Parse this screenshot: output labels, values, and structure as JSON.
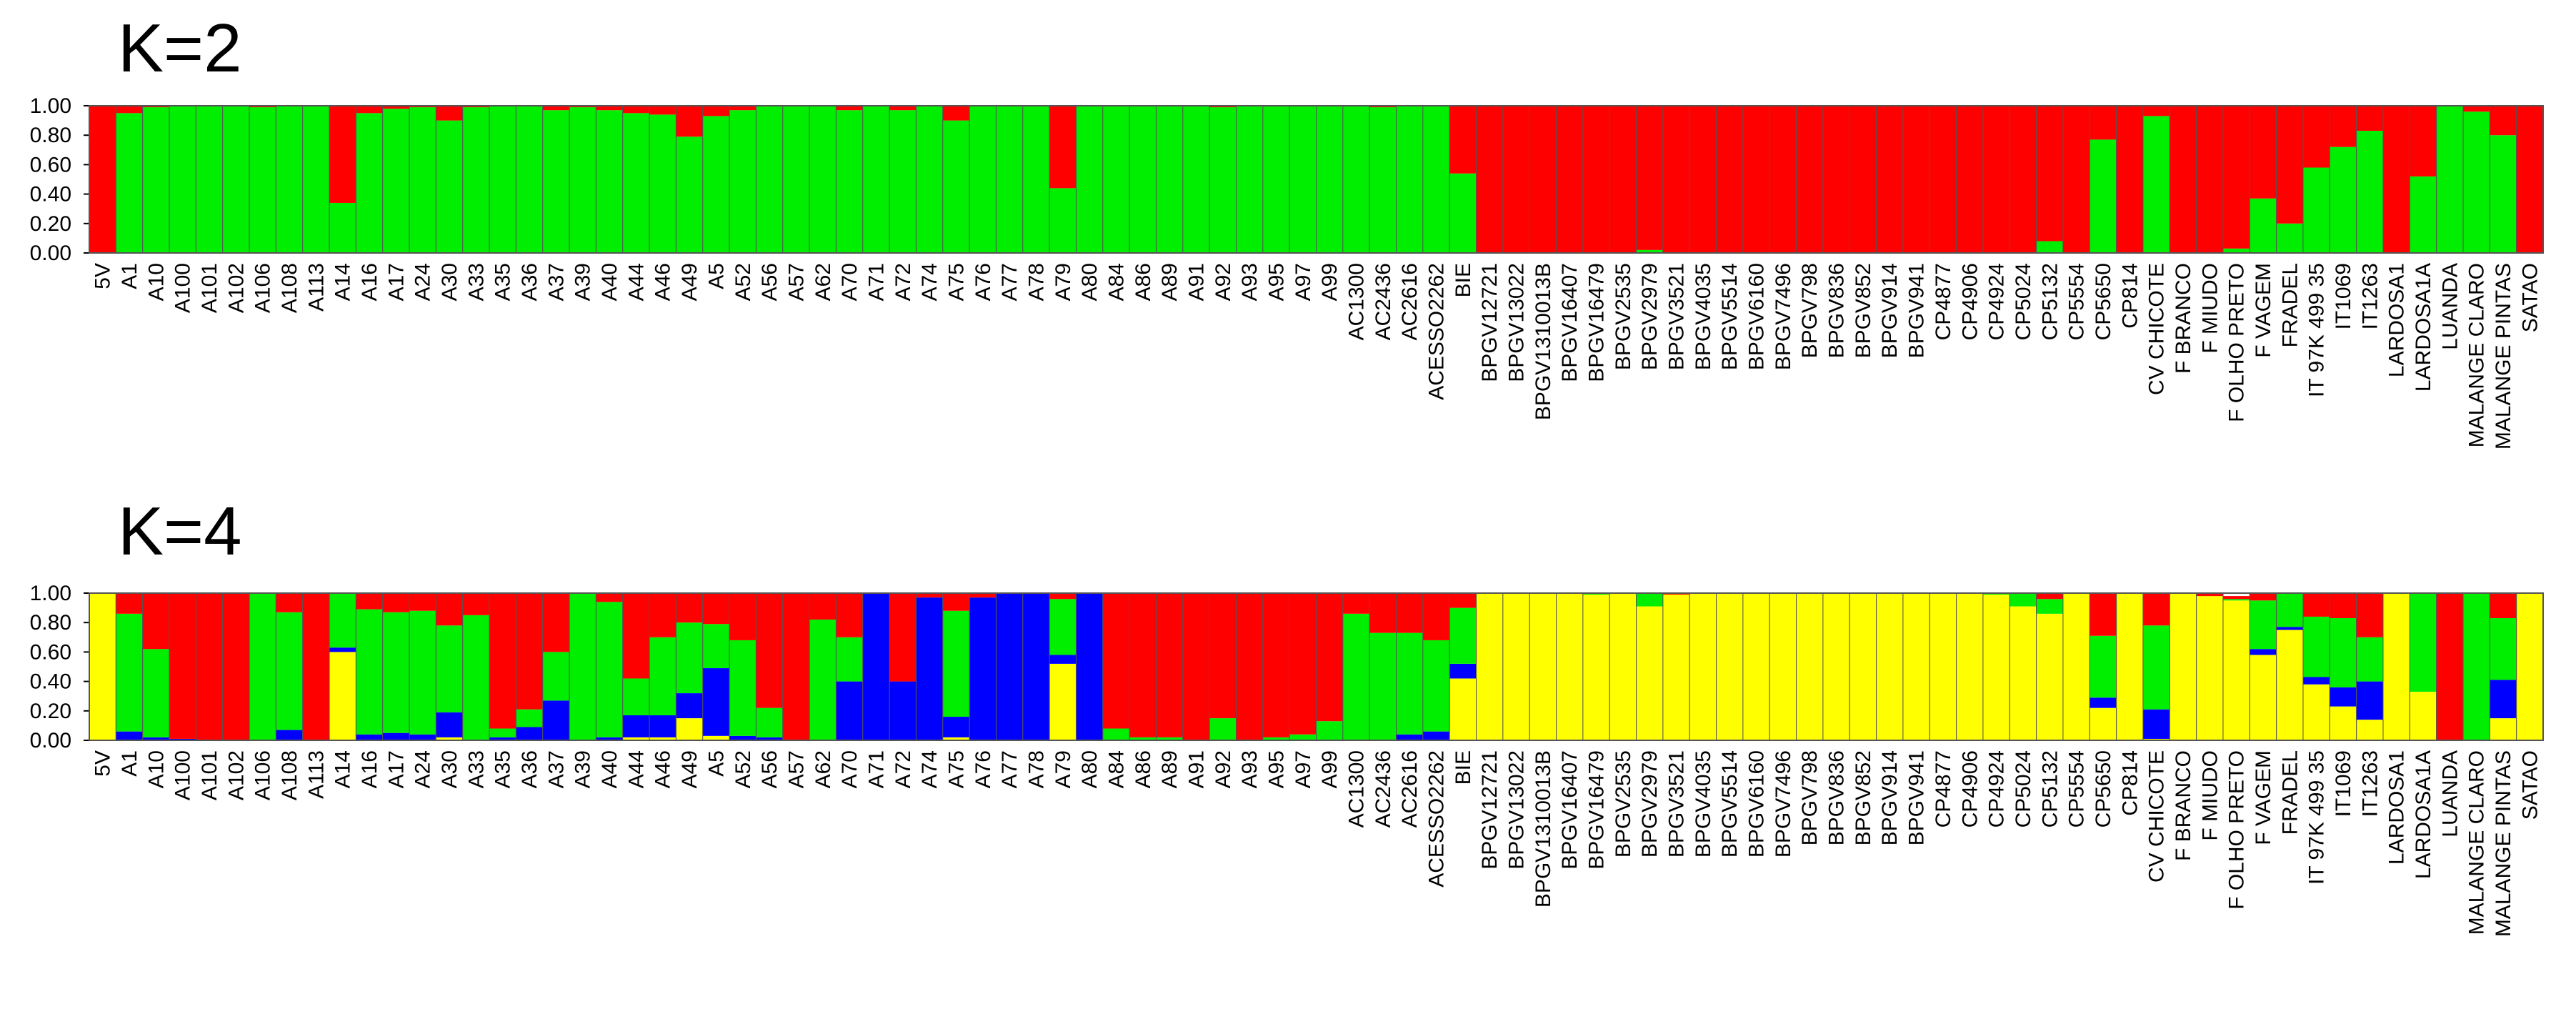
{
  "chart_data": [
    {
      "type": "stacked-bar",
      "title": "K=2",
      "ylim": [
        0,
        1
      ],
      "yticks": [
        "0.00",
        "0.20",
        "0.40",
        "0.60",
        "0.80",
        "1.00"
      ],
      "grid": false,
      "legend": "none",
      "labels": [
        "5V",
        "A1",
        "A10",
        "A100",
        "A101",
        "A102",
        "A106",
        "A108",
        "A113",
        "A14",
        "A16",
        "A17",
        "A24",
        "A30",
        "A33",
        "A35",
        "A36",
        "A37",
        "A39",
        "A40",
        "A44",
        "A46",
        "A49",
        "A5",
        "A52",
        "A56",
        "A57",
        "A62",
        "A70",
        "A71",
        "A72",
        "A74",
        "A75",
        "A76",
        "A77",
        "A78",
        "A79",
        "A80",
        "A84",
        "A86",
        "A89",
        "A91",
        "A92",
        "A93",
        "A95",
        "A97",
        "A99",
        "AC1300",
        "AC2436",
        "AC2616",
        "ACESSO2262",
        "BIE",
        "BPGV12721",
        "BPGV13022",
        "BPGV1310013B",
        "BPGV16407",
        "BPGV16479",
        "BPGV2535",
        "BPGV2979",
        "BPGV3521",
        "BPGV4035",
        "BPGV5514",
        "BPGV6160",
        "BPGV7496",
        "BPGV798",
        "BPGV836",
        "BPGV852",
        "BPGV914",
        "BPGV941",
        "CP4877",
        "CP4906",
        "CP4924",
        "CP5024",
        "CP5132",
        "CP5554",
        "CP5650",
        "CP814",
        "CV CHICOTE",
        "F BRANCO",
        "F MIUDO",
        "F OLHO PRETO",
        "F VAGEM",
        "FRADEL",
        "IT 97K 499 35",
        "IT1069",
        "IT1263",
        "LARDOSA1",
        "LARDOSA1A",
        "LUANDA",
        "MALANGE CLARO",
        "MALANGE PINTAS",
        "SATAO"
      ],
      "series": [
        {
          "color": "#00ee00",
          "values": [
            0,
            0.95,
            0.99,
            1,
            1,
            1,
            0.99,
            1,
            1,
            0.34,
            0.95,
            0.98,
            0.99,
            0.9,
            0.99,
            1,
            1,
            0.97,
            0.99,
            0.97,
            0.95,
            0.94,
            0.79,
            0.93,
            0.97,
            1,
            1,
            1,
            0.97,
            1,
            0.97,
            1,
            0.9,
            1,
            1,
            1,
            0.44,
            1,
            1,
            1,
            1,
            1,
            0.99,
            1,
            1,
            1,
            1,
            1,
            0.99,
            1,
            1,
            0.54,
            0,
            0,
            0,
            0,
            0,
            0,
            0.02,
            0,
            0,
            0,
            0,
            0,
            0,
            0,
            0,
            0,
            0,
            0,
            0,
            0,
            0,
            0.08,
            0,
            0.77,
            0,
            0.93,
            0,
            0,
            0.03,
            0.37,
            0.2,
            0.58,
            0.72,
            0.83,
            0,
            0.52,
            1,
            0.96,
            0.8,
            0
          ]
        },
        {
          "color": "#ff0000",
          "values": [
            1,
            0.05,
            0.01,
            0,
            0,
            0,
            0.01,
            0,
            0,
            0.66,
            0.05,
            0.02,
            0.01,
            0.1,
            0.01,
            0,
            0,
            0.03,
            0.01,
            0.03,
            0.05,
            0.06,
            0.21,
            0.07,
            0.03,
            0,
            0,
            0,
            0.03,
            0,
            0.03,
            0,
            0.1,
            0,
            0,
            0,
            0.56,
            0,
            0,
            0,
            0,
            0,
            0.01,
            0,
            0,
            0,
            0,
            0,
            0.01,
            0,
            0,
            0.46,
            1,
            1,
            1,
            1,
            1,
            1,
            0.98,
            1,
            1,
            1,
            1,
            1,
            1,
            1,
            1,
            1,
            1,
            1,
            1,
            1,
            1,
            0.92,
            1,
            0.23,
            1,
            0.07,
            1,
            1,
            0.97,
            0.63,
            0.8,
            0.42,
            0.28,
            0.17,
            1,
            0.48,
            0,
            0.04,
            0.2,
            1
          ]
        }
      ]
    },
    {
      "type": "stacked-bar",
      "title": "K=4",
      "ylim": [
        0,
        1
      ],
      "yticks": [
        "0.00",
        "0.20",
        "0.40",
        "0.60",
        "0.80",
        "1.00"
      ],
      "grid": false,
      "legend": "none",
      "labels": [
        "5V",
        "A1",
        "A10",
        "A100",
        "A101",
        "A102",
        "A106",
        "A108",
        "A113",
        "A14",
        "A16",
        "A17",
        "A24",
        "A30",
        "A33",
        "A35",
        "A36",
        "A37",
        "A39",
        "A40",
        "A44",
        "A46",
        "A49",
        "A5",
        "A52",
        "A56",
        "A57",
        "A62",
        "A70",
        "A71",
        "A72",
        "A74",
        "A75",
        "A76",
        "A77",
        "A78",
        "A79",
        "A80",
        "A84",
        "A86",
        "A89",
        "A91",
        "A92",
        "A93",
        "A95",
        "A97",
        "A99",
        "AC1300",
        "AC2436",
        "AC2616",
        "ACESSO2262",
        "BIE",
        "BPGV12721",
        "BPGV13022",
        "BPGV1310013B",
        "BPGV16407",
        "BPGV16479",
        "BPGV2535",
        "BPGV2979",
        "BPGV3521",
        "BPGV4035",
        "BPGV5514",
        "BPGV6160",
        "BPGV7496",
        "BPGV798",
        "BPGV836",
        "BPGV852",
        "BPGV914",
        "BPGV941",
        "CP4877",
        "CP4906",
        "CP4924",
        "CP5024",
        "CP5132",
        "CP5554",
        "CP5650",
        "CP814",
        "CV CHICOTE",
        "F BRANCO",
        "F MIUDO",
        "F OLHO PRETO",
        "F VAGEM",
        "FRADEL",
        "IT 97K 499 35",
        "IT1069",
        "IT1263",
        "LARDOSA1",
        "LARDOSA1A",
        "LUANDA",
        "MALANGE CLARO",
        "MALANGE PINTAS",
        "SATAO"
      ],
      "series": [
        {
          "color": "#ffff00",
          "values": [
            1,
            0,
            0,
            0,
            0,
            0,
            0,
            0,
            0,
            0.6,
            0,
            0,
            0,
            0.02,
            0,
            0,
            0,
            0,
            0,
            0,
            0.02,
            0.02,
            0.15,
            0.03,
            0,
            0,
            0,
            0,
            0,
            0,
            0,
            0,
            0.02,
            0,
            0,
            0,
            0.52,
            0,
            0,
            0,
            0,
            0,
            0,
            0,
            0,
            0,
            0,
            0,
            0,
            0,
            0,
            0.42,
            1,
            1,
            1,
            1,
            0.99,
            1,
            0.91,
            0.99,
            1,
            1,
            1,
            1,
            1,
            1,
            1,
            1,
            1,
            1,
            1,
            0.99,
            0.91,
            0.86,
            1,
            0.22,
            1,
            0.01,
            1,
            0.98,
            0.95,
            0.58,
            0.75,
            0.38,
            0.23,
            0.14,
            1,
            0.33,
            0,
            0,
            0.15,
            1
          ]
        },
        {
          "color": "#0000ff",
          "values": [
            0,
            0.06,
            0.02,
            0.01,
            0,
            0,
            0,
            0.07,
            0,
            0.03,
            0.04,
            0.05,
            0.04,
            0.17,
            0,
            0.02,
            0.09,
            0.27,
            0,
            0.02,
            0.15,
            0.15,
            0.17,
            0.46,
            0.03,
            0.02,
            0,
            0,
            0.4,
            1,
            0.4,
            0.97,
            0.14,
            0.97,
            1,
            1,
            0.06,
            1,
            0,
            0,
            0,
            0,
            0,
            0,
            0,
            0,
            0,
            0,
            0,
            0.04,
            0.06,
            0.1,
            0,
            0,
            0,
            0,
            0,
            0,
            0,
            0,
            0,
            0,
            0,
            0,
            0,
            0,
            0,
            0,
            0,
            0,
            0,
            0,
            0,
            0,
            0,
            0.07,
            0,
            0.2,
            0,
            0,
            0,
            0.04,
            0.02,
            0.05,
            0.13,
            0.26,
            0,
            0,
            0,
            0,
            0.26,
            0
          ]
        },
        {
          "color": "#00ee00",
          "values": [
            0,
            0.8,
            0.6,
            0,
            0,
            0,
            1,
            0.8,
            0,
            0.37,
            0.85,
            0.82,
            0.84,
            0.59,
            0.85,
            0.06,
            0.12,
            0.33,
            1,
            0.92,
            0.25,
            0.53,
            0.48,
            0.3,
            0.65,
            0.2,
            0,
            0.82,
            0.3,
            0,
            0,
            0,
            0.72,
            0,
            0,
            0,
            0.38,
            0,
            0.08,
            0.02,
            0.02,
            0,
            0.15,
            0,
            0.02,
            0.04,
            0.13,
            0.86,
            0.73,
            0.69,
            0.62,
            0.38,
            0,
            0,
            0,
            0,
            0.01,
            0,
            0.09,
            0,
            0,
            0,
            0,
            0,
            0,
            0,
            0,
            0,
            0,
            0,
            0,
            0.01,
            0.09,
            0.1,
            0,
            0.42,
            0,
            0.57,
            0,
            0,
            0.01,
            0.33,
            0.23,
            0.41,
            0.47,
            0.3,
            0,
            0.67,
            0,
            1,
            0.42,
            0
          ]
        },
        {
          "color": "#ff0000",
          "values": [
            0,
            0.14,
            0.38,
            0.99,
            1,
            1,
            0,
            0.13,
            1,
            0,
            0.11,
            0.13,
            0.12,
            0.22,
            0.15,
            0.92,
            0.79,
            0.4,
            0,
            0.06,
            0.58,
            0.3,
            0.2,
            0.21,
            0.32,
            0.78,
            1,
            0.18,
            0.3,
            0,
            0.6,
            0.03,
            0.12,
            0.03,
            0,
            0,
            0.04,
            0,
            0.92,
            0.98,
            0.98,
            1,
            0.85,
            1,
            0.98,
            0.96,
            0.87,
            0.14,
            0.27,
            0.27,
            0.32,
            0.1,
            0,
            0,
            0,
            0,
            0,
            0,
            0,
            0.01,
            0,
            0,
            0,
            0,
            0,
            0,
            0,
            0,
            0,
            0,
            0,
            0,
            0,
            0.04,
            0,
            0.29,
            0,
            0.22,
            0,
            0.02,
            0.02,
            0.05,
            0,
            0.16,
            0.17,
            0.3,
            0,
            0,
            1,
            0,
            0.17,
            0
          ]
        }
      ]
    }
  ]
}
